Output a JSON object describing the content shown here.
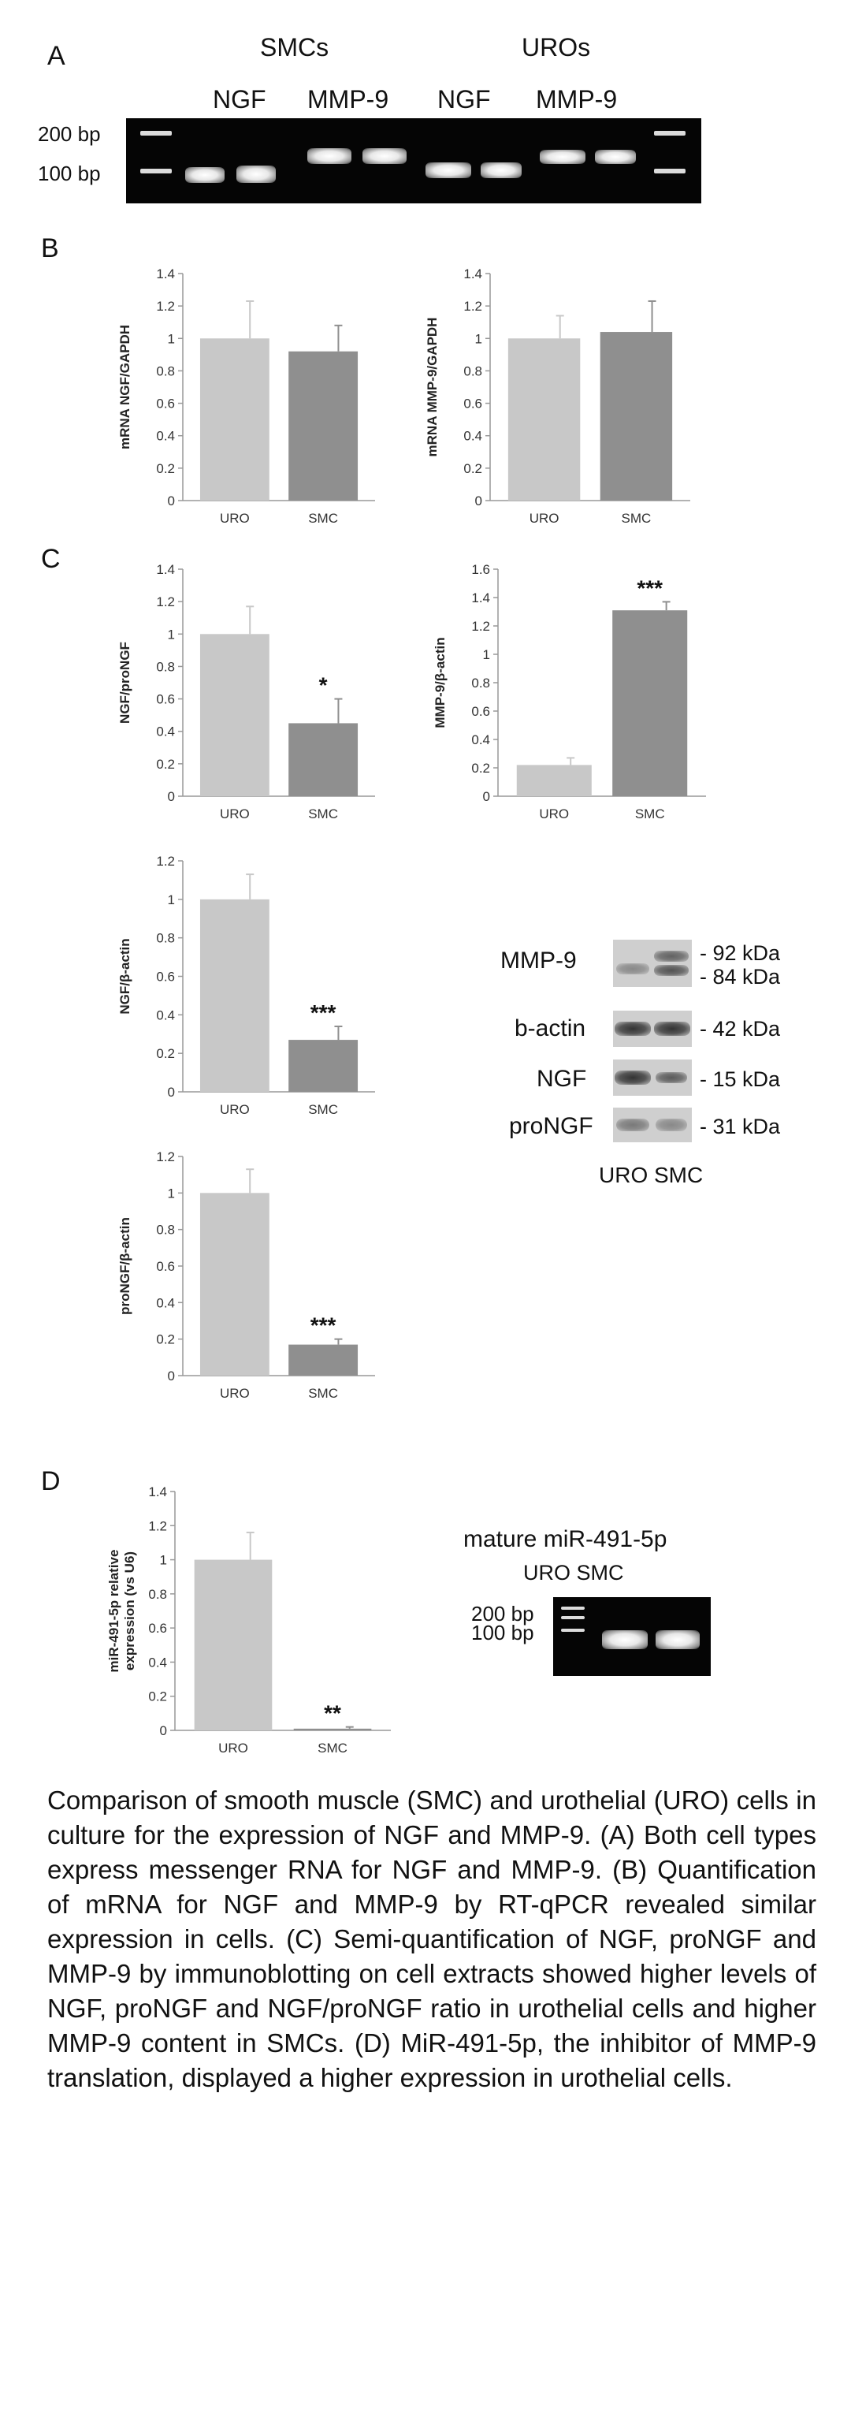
{
  "panelA": {
    "letter": "A",
    "group_smc": "SMCs",
    "group_uro": "UROs",
    "lane_labels": [
      "NGF",
      "MMP-9",
      "NGF",
      "MMP-9"
    ],
    "marker_200": "200 bp",
    "marker_100": "100 bp"
  },
  "panelB": {
    "letter": "B"
  },
  "panelC": {
    "letter": "C",
    "blot_labels": [
      "MMP-9",
      "b-actin",
      "NGF",
      "proNGF"
    ],
    "kda_labels": [
      "- 92 kDa",
      "- 84 kDa",
      "- 42 kDa",
      "- 15 kDa",
      "- 31 kDa"
    ],
    "blot_lanes": "URO SMC"
  },
  "panelD": {
    "letter": "D",
    "gel_title": "mature miR-491-5p",
    "gel_lanes": "URO SMC",
    "marker_200": "200 bp",
    "marker_100": "100 bp"
  },
  "caption": "Comparison of smooth muscle (SMC) and urothelial (URO) cells in culture for the expression of NGF and MMP-9. (A) Both cell types express messenger RNA for NGF and MMP-9. (B) Quantification of mRNA for NGF and MMP-9 by RT-qPCR revealed similar expression in cells. (C) Semi-quantification of NGF, proNGF and MMP-9 by immunoblotting on cell extracts showed higher levels of NGF, proNGF and NGF/proNGF ratio in urothelial cells and higher MMP-9 content in SMCs. (D) MiR-491-5p, the inhibitor of MMP-9 translation, displayed a higher expression in urothelial cells.",
  "colors": {
    "uro_bar": "#c8c8c8",
    "smc_bar": "#8f8f8f",
    "axis": "#999999"
  },
  "chart_data": [
    {
      "id": "b1",
      "type": "bar",
      "ylabel": "mRNA NGF/GAPDH",
      "categories": [
        "URO",
        "SMC"
      ],
      "values": [
        1.0,
        0.92
      ],
      "errors": [
        0.23,
        0.16
      ],
      "ylim": [
        0,
        1.4
      ],
      "ticks": [
        "0",
        "0.2",
        "0.4",
        "0.6",
        "0.8",
        "1",
        "1.2",
        "1.4"
      ],
      "sig": [
        "",
        ""
      ]
    },
    {
      "id": "b2",
      "type": "bar",
      "ylabel": "mRNA MMP-9/GAPDH",
      "categories": [
        "URO",
        "SMC"
      ],
      "values": [
        1.0,
        1.04
      ],
      "errors": [
        0.14,
        0.19
      ],
      "ylim": [
        0,
        1.4
      ],
      "ticks": [
        "0",
        "0.2",
        "0.4",
        "0.6",
        "0.8",
        "1",
        "1.2",
        "1.4"
      ],
      "sig": [
        "",
        ""
      ]
    },
    {
      "id": "c1",
      "type": "bar",
      "ylabel": "NGF/proNGF",
      "categories": [
        "URO",
        "SMC"
      ],
      "values": [
        1.0,
        0.45
      ],
      "errors": [
        0.17,
        0.15
      ],
      "ylim": [
        0,
        1.4
      ],
      "ticks": [
        "0",
        "0.2",
        "0.4",
        "0.6",
        "0.8",
        "1",
        "1.2",
        "1.4"
      ],
      "sig": [
        "",
        "*"
      ]
    },
    {
      "id": "c2",
      "type": "bar",
      "ylabel": "MMP-9/β-actin",
      "categories": [
        "URO",
        "SMC"
      ],
      "values": [
        0.22,
        1.31
      ],
      "errors": [
        0.05,
        0.06
      ],
      "ylim": [
        0,
        1.6
      ],
      "ticks": [
        "0",
        "0.2",
        "0.4",
        "0.6",
        "0.8",
        "1",
        "1.2",
        "1.4",
        "1.6"
      ],
      "sig": [
        "",
        "***"
      ]
    },
    {
      "id": "c3",
      "type": "bar",
      "ylabel": "NGF/β-actin",
      "categories": [
        "URO",
        "SMC"
      ],
      "values": [
        1.0,
        0.27
      ],
      "errors": [
        0.13,
        0.07
      ],
      "ylim": [
        0,
        1.2
      ],
      "ticks": [
        "0",
        "0.2",
        "0.4",
        "0.6",
        "0.8",
        "1",
        "1.2"
      ],
      "sig": [
        "",
        "***"
      ]
    },
    {
      "id": "c4",
      "type": "bar",
      "ylabel": "proNGF/β-actin",
      "categories": [
        "URO",
        "SMC"
      ],
      "values": [
        1.0,
        0.17
      ],
      "errors": [
        0.13,
        0.03
      ],
      "ylim": [
        0,
        1.2
      ],
      "ticks": [
        "0",
        "0.2",
        "0.4",
        "0.6",
        "0.8",
        "1",
        "1.2"
      ],
      "sig": [
        "",
        "***"
      ]
    },
    {
      "id": "d1",
      "type": "bar",
      "ylabel": "miR-491-5p relative expression (vs U6)",
      "ylabel_lines": [
        "miR-491-5p relative",
        "expression (vs U6)"
      ],
      "categories": [
        "URO",
        "SMC"
      ],
      "values": [
        1.0,
        0.01
      ],
      "errors": [
        0.16,
        0.01
      ],
      "ylim": [
        0,
        1.4
      ],
      "ticks": [
        "0",
        "0.2",
        "0.4",
        "0.6",
        "0.8",
        "1",
        "1.2",
        "1.4"
      ],
      "sig": [
        "",
        "**"
      ]
    }
  ]
}
